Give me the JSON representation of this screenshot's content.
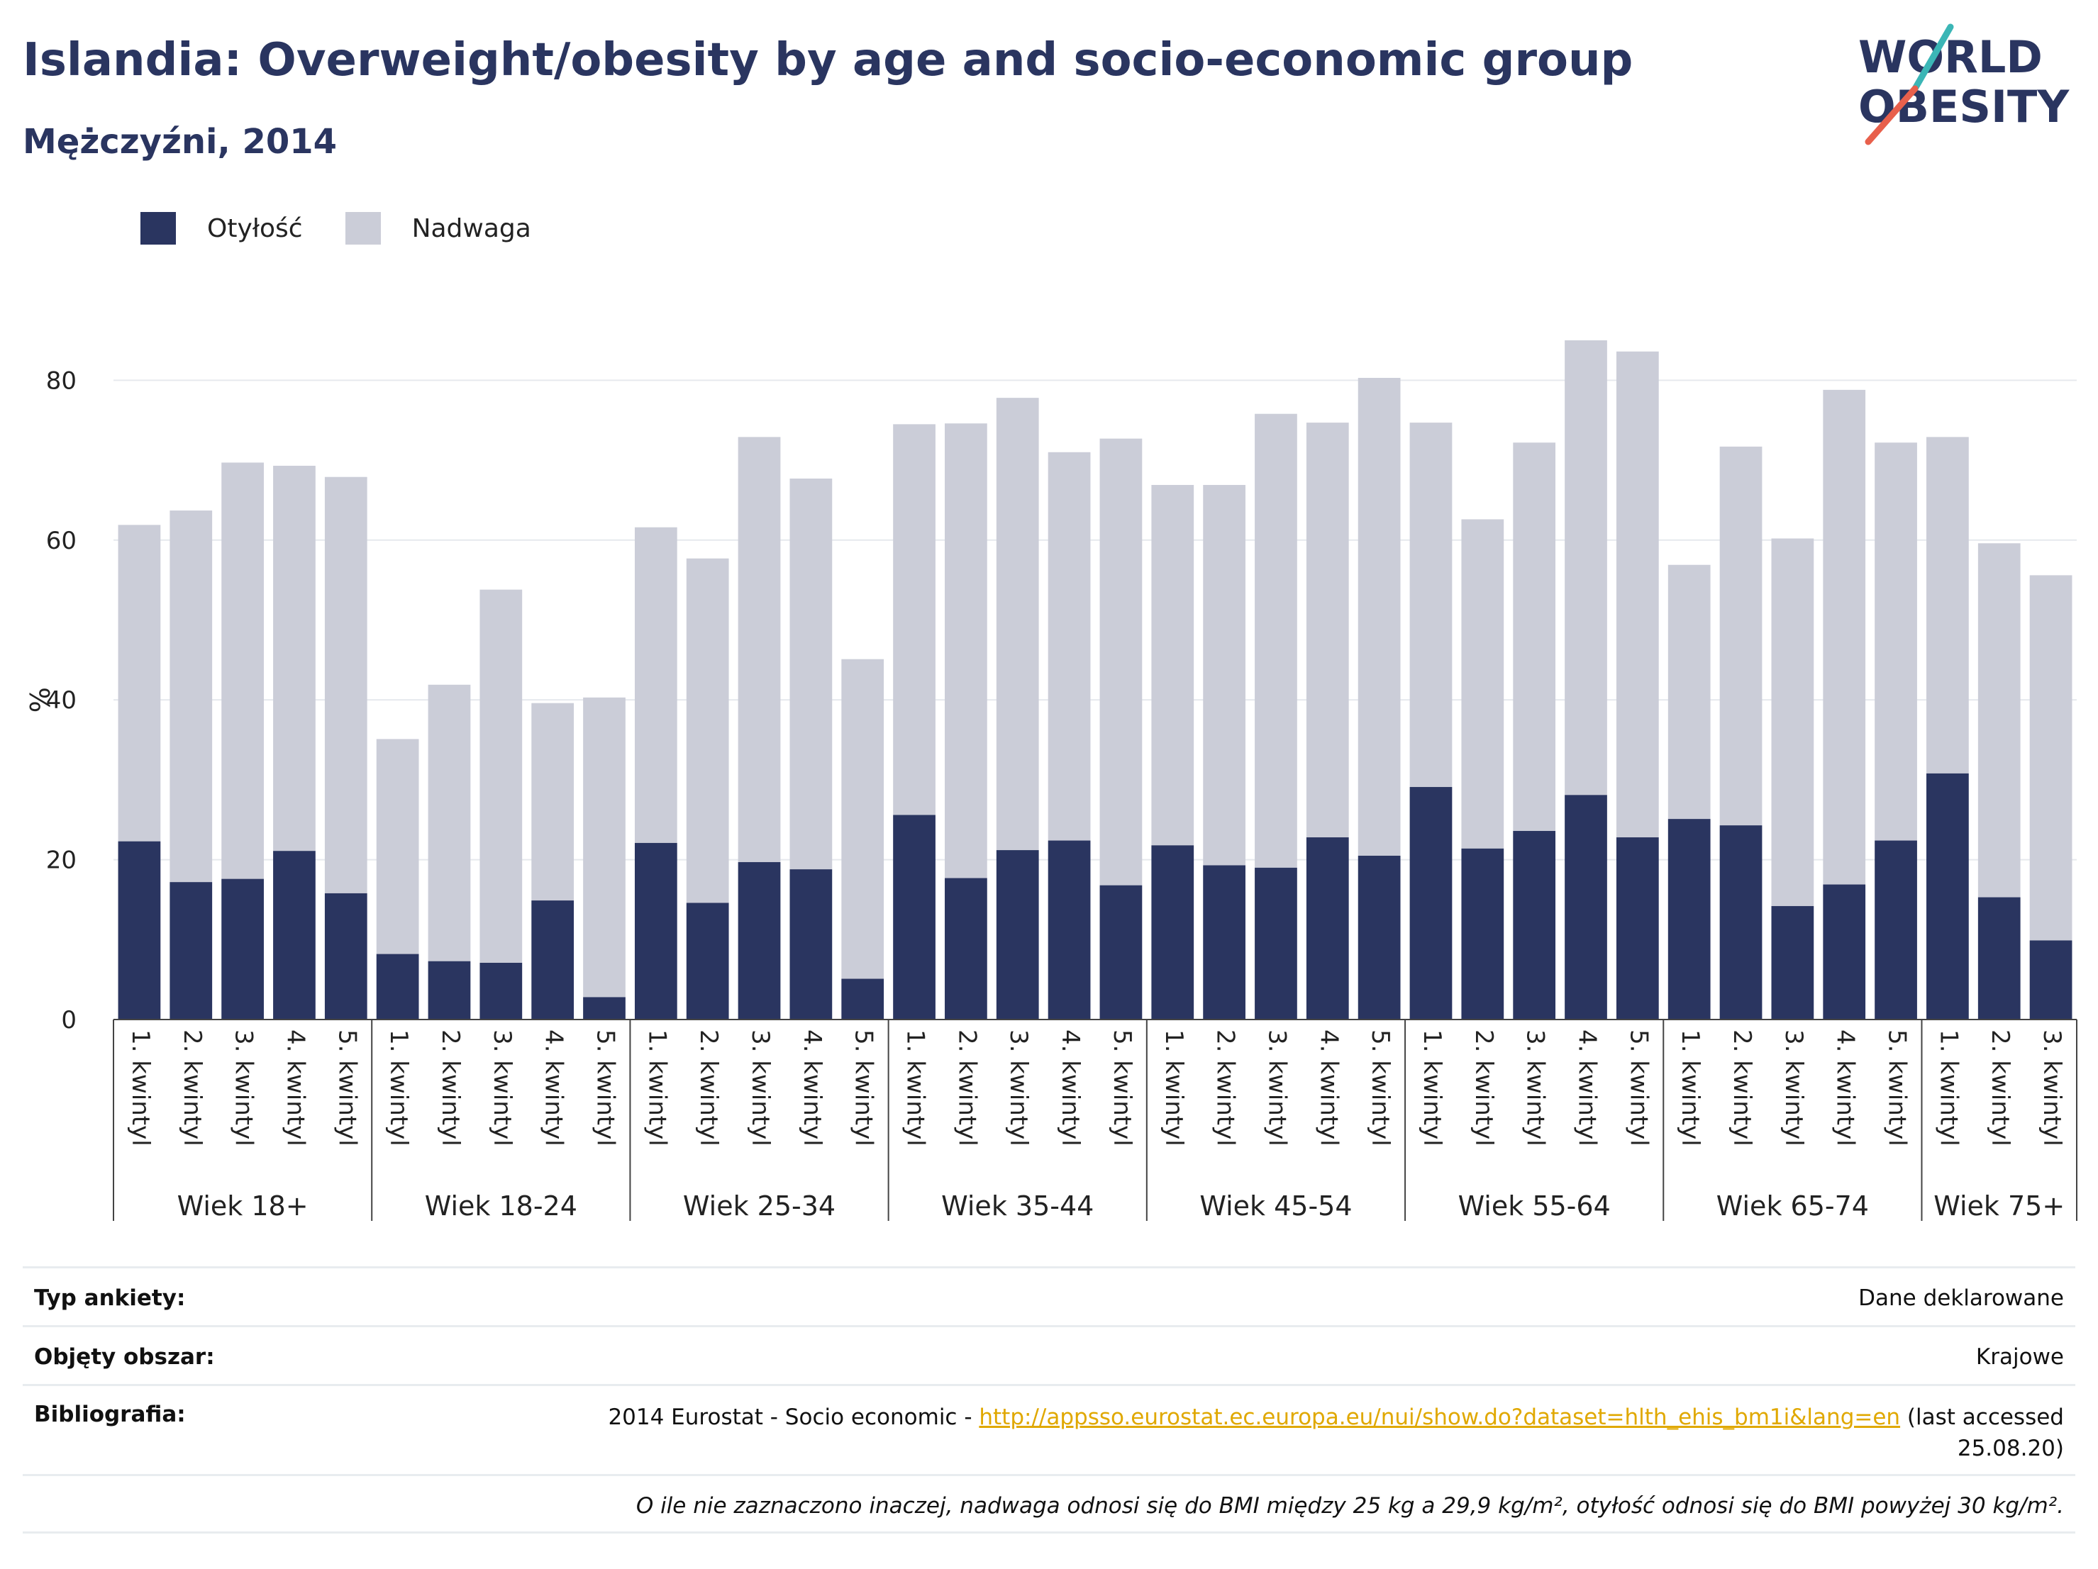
{
  "header": {
    "title": "Islandia: Overweight/obesity by age and socio-economic group",
    "subtitle": "Mężczyźni, 2014"
  },
  "logo": {
    "line1": "WORLD",
    "line2": "OBESITY"
  },
  "colors": {
    "obesity": "#2a3560",
    "overweight": "#cbcdd8",
    "grid": "#e6e9ee",
    "accent_teal": "#3bb6b6",
    "accent_red": "#e8604c"
  },
  "chart_data": {
    "type": "bar",
    "stacked": true,
    "title": "Islandia: Overweight/obesity by age and socio-economic group",
    "subtitle": "Mężczyźni, 2014",
    "ylabel": "%",
    "ylim": [
      0,
      85
    ],
    "yticks": [
      0,
      20,
      40,
      60,
      80
    ],
    "grid": true,
    "legend_position": "top-left",
    "groups": [
      {
        "label": "Wiek 18+",
        "categories": [
          "1. kwintyl",
          "2. kwintyl",
          "3. kwintyl",
          "4. kwintyl",
          "5. kwintyl"
        ]
      },
      {
        "label": "Wiek 18-24",
        "categories": [
          "1. kwintyl",
          "2. kwintyl",
          "3. kwintyl",
          "4. kwintyl",
          "5. kwintyl"
        ]
      },
      {
        "label": "Wiek 25-34",
        "categories": [
          "1. kwintyl",
          "2. kwintyl",
          "3. kwintyl",
          "4. kwintyl",
          "5. kwintyl"
        ]
      },
      {
        "label": "Wiek 35-44",
        "categories": [
          "1. kwintyl",
          "2. kwintyl",
          "3. kwintyl",
          "4. kwintyl",
          "5. kwintyl"
        ]
      },
      {
        "label": "Wiek 45-54",
        "categories": [
          "1. kwintyl",
          "2. kwintyl",
          "3. kwintyl",
          "4. kwintyl",
          "5. kwintyl"
        ]
      },
      {
        "label": "Wiek 55-64",
        "categories": [
          "1. kwintyl",
          "2. kwintyl",
          "3. kwintyl",
          "4. kwintyl",
          "5. kwintyl"
        ]
      },
      {
        "label": "Wiek 65-74",
        "categories": [
          "1. kwintyl",
          "2. kwintyl",
          "3. kwintyl",
          "4. kwintyl",
          "5. kwintyl"
        ]
      },
      {
        "label": "Wiek 75+",
        "categories": [
          "1. kwintyl",
          "2. kwintyl",
          "3. kwintyl"
        ]
      }
    ],
    "series": [
      {
        "name": "Otyłość",
        "color": "#2a3560",
        "values": [
          22.3,
          17.2,
          17.6,
          21.1,
          15.8,
          8.2,
          7.3,
          7.1,
          14.9,
          2.8,
          22.1,
          14.6,
          19.7,
          18.8,
          5.1,
          25.6,
          17.7,
          21.2,
          22.4,
          16.8,
          21.8,
          19.3,
          19.0,
          22.8,
          20.5,
          29.1,
          21.4,
          23.6,
          28.1,
          22.8,
          25.1,
          24.3,
          14.2,
          16.9,
          22.4,
          30.8,
          15.3,
          9.9
        ]
      },
      {
        "name": "Nadwaga",
        "color": "#cbcdd8",
        "values": [
          39.6,
          46.5,
          52.1,
          48.2,
          52.1,
          26.9,
          34.6,
          46.7,
          24.7,
          37.5,
          39.5,
          43.1,
          53.2,
          48.9,
          40.0,
          48.9,
          56.9,
          56.6,
          48.6,
          55.9,
          45.1,
          47.6,
          56.8,
          51.9,
          59.8,
          45.6,
          41.2,
          48.6,
          56.9,
          60.8,
          31.8,
          47.4,
          46.0,
          61.9,
          49.8,
          42.1,
          44.3,
          45.7
        ]
      }
    ]
  },
  "info": {
    "survey_label": "Typ ankiety:",
    "survey_value": "Dane deklarowane",
    "area_label": "Objęty obszar:",
    "area_value": "Krajowe",
    "bib_label": "Bibliografia:",
    "bib_prefix": "2014 Eurostat - Socio economic - ",
    "bib_link": "http://appsso.eurostat.ec.europa.eu/nui/show.do?dataset=hlth_ehis_bm1i&lang=en",
    "bib_suffix": " (last accessed",
    "bib_date": "25.08.20)",
    "note": "O ile nie zaznaczono inaczej, nadwaga odnosi się do BMI między 25 kg a 29,9 kg/m², otyłość odnosi się do BMI powyżej 30 kg/m²."
  }
}
